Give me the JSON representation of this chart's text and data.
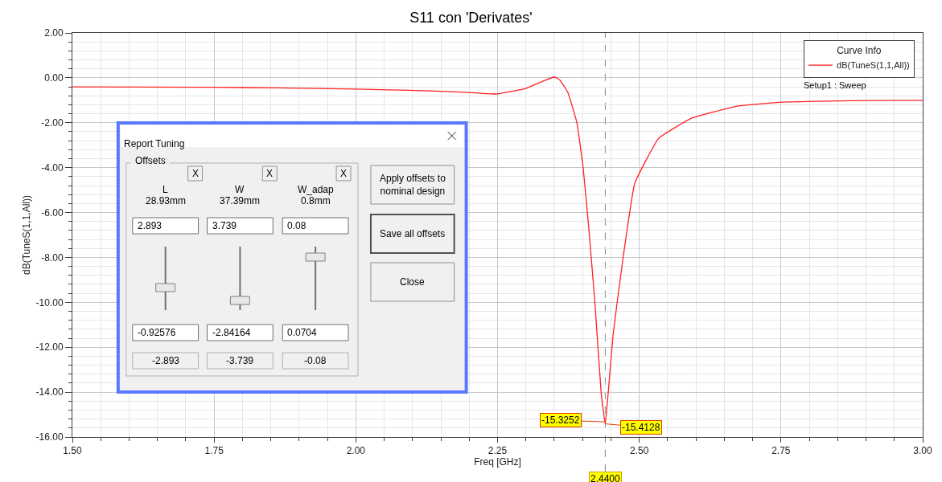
{
  "chart_data": [
    {
      "type": "line",
      "title": "S11 con 'Derivates'",
      "xlabel": "Freq [GHz]",
      "ylabel": "dB(TuneS(1,1,All))",
      "legend_title": "Curve Info",
      "x": [
        1.5,
        1.75,
        1.86,
        2.0,
        2.12,
        2.2,
        2.247,
        2.3,
        2.33,
        2.35,
        2.36,
        2.374,
        2.39,
        2.401,
        2.411,
        2.422,
        2.433,
        2.44,
        2.445,
        2.454,
        2.471,
        2.492,
        2.534,
        2.592,
        2.673,
        2.752,
        2.87,
        3.0
      ],
      "series": [
        {
          "name": "dB(TuneS(1,1,All))",
          "color": "#ff2020",
          "values": [
            -0.4,
            -0.42,
            -0.45,
            -0.5,
            -0.57,
            -0.65,
            -0.72,
            -0.47,
            -0.15,
            0.04,
            -0.1,
            -0.65,
            -2.0,
            -4.0,
            -6.7,
            -10.1,
            -14.1,
            -15.41,
            -14.1,
            -11.4,
            -8.1,
            -4.7,
            -2.7,
            -1.8,
            -1.26,
            -1.08,
            -1.02,
            -1.0
          ]
        }
      ],
      "annotations": [
        "Setup1 : Sweep",
        {
          "text": "-15.3252",
          "x": 2.44,
          "y": -15.3252
        },
        {
          "text": "-15.4128",
          "x": 2.44,
          "y": -15.4128
        }
      ],
      "ref_lines": [
        {
          "axis": "x",
          "value": 2.44,
          "label": "2.4400",
          "color": "#808080",
          "line_style": "dashed"
        }
      ],
      "xlim": [
        1.5,
        3.0
      ],
      "ylim": [
        -16,
        2
      ],
      "xticks": [
        {
          "value": 1.5,
          "label": "1.50"
        },
        {
          "value": 1.75,
          "label": "1.75"
        },
        {
          "value": 2.0,
          "label": "2.00"
        },
        {
          "value": 2.25,
          "label": "2.25"
        },
        {
          "value": 2.5,
          "label": "2.50"
        },
        {
          "value": 2.75,
          "label": "2.75"
        },
        {
          "value": 3.0,
          "label": "3.00"
        }
      ],
      "yticks": [
        {
          "value": 2,
          "label": "2.00"
        },
        {
          "value": 0,
          "label": "0.00"
        },
        {
          "value": -2,
          "label": "-2.00"
        },
        {
          "value": -4,
          "label": "-4.00"
        },
        {
          "value": -6,
          "label": "-6.00"
        },
        {
          "value": -8,
          "label": "-8.00"
        },
        {
          "value": -10,
          "label": "-10.00"
        },
        {
          "value": -12,
          "label": "-12.00"
        },
        {
          "value": -14,
          "label": "-14.00"
        },
        {
          "value": -16,
          "label": "-16.00"
        }
      ],
      "grid": true,
      "legend": "top right",
      "marker": "none",
      "line_style": "solid"
    },
    {
      "type": "other",
      "title": "Report Tuning",
      "annotations": [
        "Offsets",
        "X",
        "X",
        "X",
        "L",
        "28.93mm",
        "W",
        "37.39mm",
        "W_adap",
        "0.8mm",
        "2.893",
        "3.739",
        "0.08",
        "-0.92576",
        "-2.84164",
        "0.0704",
        "-2.893",
        "-3.739",
        "-0.08",
        "Apply offsets to\nnominal design",
        "Save all offsets",
        "Close"
      ]
    }
  ]
}
